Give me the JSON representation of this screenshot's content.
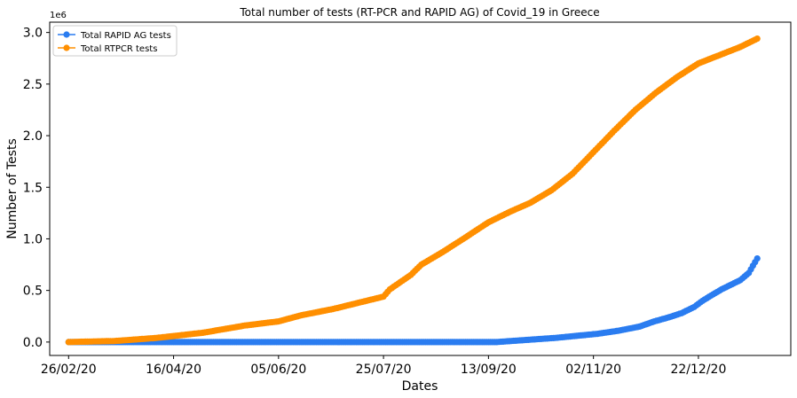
{
  "chart_data": {
    "type": "line",
    "title": "Total number of tests (RT-PCR and RAPID AG) of Covid_19 in Greece",
    "xlabel": "Dates",
    "ylabel": "Number of Tests",
    "y_offset_label": "1e6",
    "ylim": [
      -0.13,
      3.1
    ],
    "yticks": [
      0.0,
      0.5,
      1.0,
      1.5,
      2.0,
      2.5,
      3.0
    ],
    "ytick_labels": [
      "0.0",
      "0.5",
      "1.0",
      "1.5",
      "2.0",
      "2.5",
      "3.0"
    ],
    "xlim": [
      "2020-02-17",
      "2021-02-04"
    ],
    "xticks": [
      "2020-02-26",
      "2020-04-16",
      "2020-06-05",
      "2020-07-25",
      "2020-09-13",
      "2020-11-02",
      "2020-12-22"
    ],
    "xtick_labels": [
      "26/02/20",
      "16/04/20",
      "05/06/20",
      "25/07/20",
      "13/09/20",
      "02/11/20",
      "22/12/20"
    ],
    "legend_position": "top-left",
    "grid": false,
    "series": [
      {
        "name": "Total RAPID AG tests",
        "color": "#2a7cf0",
        "x": [
          "2020-02-26",
          "2020-09-17",
          "2020-10-01",
          "2020-10-15",
          "2020-10-25",
          "2020-11-04",
          "2020-11-14",
          "2020-11-24",
          "2020-12-01",
          "2020-12-08",
          "2020-12-14",
          "2020-12-20",
          "2020-12-24",
          "2020-12-28",
          "2021-01-02",
          "2021-01-06",
          "2021-01-11",
          "2021-01-15",
          "2021-01-19"
        ],
        "y": [
          0.0,
          0.0,
          0.02,
          0.04,
          0.06,
          0.08,
          0.11,
          0.15,
          0.2,
          0.24,
          0.28,
          0.34,
          0.4,
          0.45,
          0.51,
          0.55,
          0.6,
          0.67,
          0.81
        ]
      },
      {
        "name": "Total RTPCR tests",
        "color": "#ff8f00",
        "x": [
          "2020-02-26",
          "2020-03-19",
          "2020-04-08",
          "2020-04-30",
          "2020-05-20",
          "2020-06-05",
          "2020-06-16",
          "2020-07-01",
          "2020-07-15",
          "2020-07-25",
          "2020-07-28",
          "2020-08-07",
          "2020-08-12",
          "2020-08-22",
          "2020-09-01",
          "2020-09-13",
          "2020-09-23",
          "2020-10-03",
          "2020-10-13",
          "2020-10-23",
          "2020-11-02",
          "2020-11-12",
          "2020-11-22",
          "2020-12-02",
          "2020-12-12",
          "2020-12-22",
          "2021-01-01",
          "2021-01-11",
          "2021-01-19"
        ],
        "y": [
          0.0,
          0.01,
          0.04,
          0.09,
          0.16,
          0.2,
          0.26,
          0.32,
          0.39,
          0.44,
          0.51,
          0.65,
          0.75,
          0.87,
          1.0,
          1.16,
          1.26,
          1.35,
          1.47,
          1.63,
          1.84,
          2.05,
          2.25,
          2.42,
          2.57,
          2.7,
          2.78,
          2.86,
          2.94
        ]
      }
    ]
  }
}
